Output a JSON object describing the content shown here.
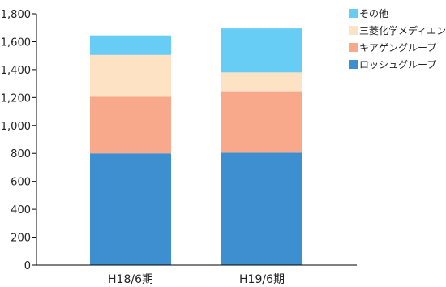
{
  "chart_data": {
    "type": "bar",
    "stacked": true,
    "categories": [
      "H18/6期",
      "H19/6期"
    ],
    "series": [
      {
        "name": "ロッシュグループ",
        "color": "#3e8fd0",
        "values": [
          800,
          805
        ]
      },
      {
        "name": "キアゲングループ",
        "color": "#f8a98c",
        "values": [
          405,
          440
        ]
      },
      {
        "name": "三菱化学メディエンス",
        "color": "#fde2c4",
        "values": [
          300,
          135
        ]
      },
      {
        "name": "その他",
        "color": "#67cdf4",
        "values": [
          140,
          315
        ]
      }
    ],
    "yticks": [
      "0",
      "200",
      "400",
      "600",
      "800",
      "1,000",
      "1,200",
      "1,400",
      "1,600",
      "1,800"
    ],
    "ylim": [
      0,
      1800
    ],
    "grid": false,
    "legend": "top-right"
  }
}
